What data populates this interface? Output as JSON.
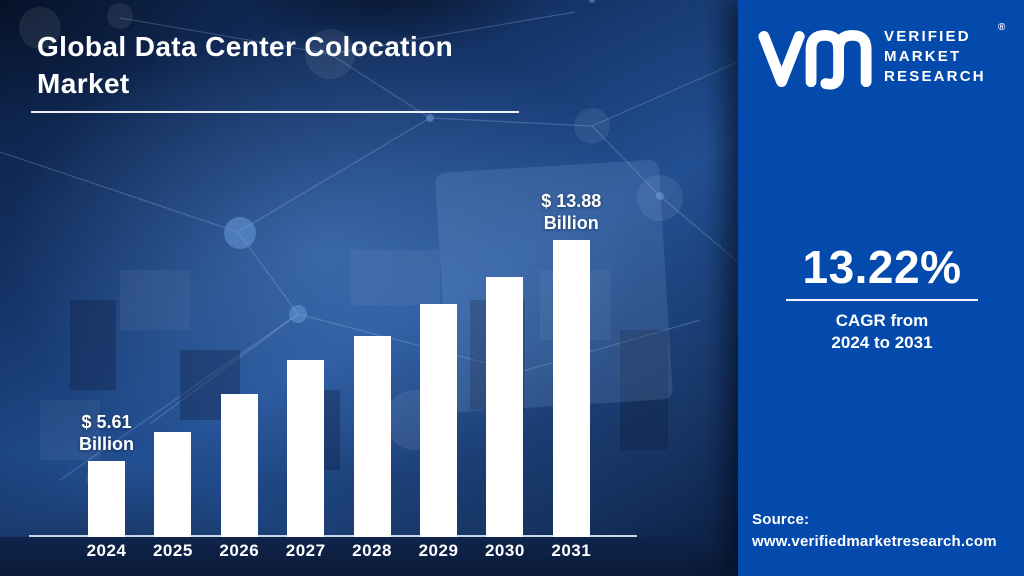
{
  "title": {
    "text": "Global Data Center Colocation Market"
  },
  "brand": {
    "mark": "vmr-monogram",
    "name_line1": "VERIFIED",
    "name_line2": "MARKET",
    "name_line3": "RESEARCH",
    "registered_mark": "®"
  },
  "stat": {
    "value": "13.22%",
    "caption_line1": "CAGR from",
    "caption_line2": "2024 to 2031"
  },
  "source": {
    "label": "Source:",
    "url": "www.verifiedmarketresearch.com"
  },
  "chart_data": {
    "type": "bar",
    "title": "Global Data Center Colocation Market",
    "unit": "USD Billion",
    "categories": [
      "2024",
      "2025",
      "2026",
      "2027",
      "2028",
      "2029",
      "2030",
      "2031"
    ],
    "values": [
      5.61,
      6.7,
      8.1,
      9.4,
      10.3,
      11.5,
      12.5,
      13.88
    ],
    "values_labeled_in_image": [
      true,
      false,
      false,
      false,
      false,
      false,
      false,
      true
    ],
    "data_labels": [
      {
        "category": "2024",
        "line1": "$ 5.61",
        "line2": "Billion"
      },
      {
        "category": "2031",
        "line1": "$ 13.88",
        "line2": "Billion"
      }
    ],
    "xlabel": "",
    "ylabel": "",
    "ylim": [
      0,
      14.5
    ],
    "bar_color": "#ffffff",
    "grid": false,
    "legend": "none",
    "axis": {
      "baseline_visible": true,
      "y_axis_visible": false
    }
  },
  "colors": {
    "right_panel_bg": "#0449ac",
    "left_bg_dark": "#0a1c3c",
    "left_bg_glow": "#235093",
    "bar": "#ffffff",
    "text": "#ffffff",
    "axis_line": "#d9e4f4",
    "bottom_band": "#10254c"
  }
}
